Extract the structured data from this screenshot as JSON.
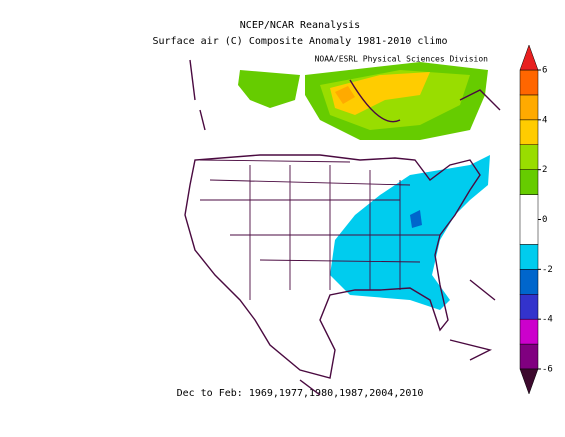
{
  "title": "NCEP/NCAR Reanalysis",
  "subtitle": "Surface air (C) Composite Anomaly 1981-2010 climo",
  "credit": "NOAA/ESRL Physical Sciences Division",
  "caption": "Dec to Feb: 1969,1977,1980,1987,2004,2010",
  "colorbar": {
    "levels": [
      -6,
      -5,
      -4,
      -3,
      -2,
      -1,
      1,
      2,
      3,
      4,
      5,
      6
    ],
    "colors": [
      "#3d0a2e",
      "#800080",
      "#cc00cc",
      "#3333cc",
      "#0066cc",
      "#00ccee",
      "#ffffff",
      "#66cc00",
      "#99dd00",
      "#ffcc00",
      "#ffaa00",
      "#ff6600",
      "#e82020"
    ],
    "ticks": [
      -6,
      -4,
      -2,
      0,
      2,
      4,
      6
    ]
  }
}
